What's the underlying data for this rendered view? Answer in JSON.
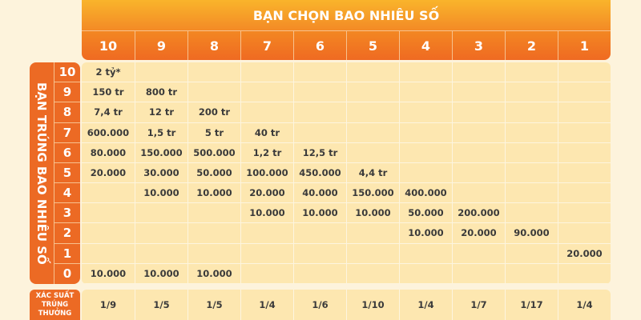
{
  "header": {
    "title": "BẠN CHỌN BAO NHIÊU SỐ",
    "columns": [
      "10",
      "9",
      "8",
      "7",
      "6",
      "5",
      "4",
      "3",
      "2",
      "1"
    ]
  },
  "side": {
    "title": "BẠN TRÚNG BAO NHIÊU SỐ",
    "rows": [
      "10",
      "9",
      "8",
      "7",
      "6",
      "5",
      "4",
      "3",
      "2",
      "1",
      "0"
    ]
  },
  "table": [
    [
      "2 tỷ*",
      "",
      "",
      "",
      "",
      "",
      "",
      "",
      "",
      ""
    ],
    [
      "150 tr",
      "800 tr",
      "",
      "",
      "",
      "",
      "",
      "",
      "",
      ""
    ],
    [
      "7,4 tr",
      "12 tr",
      "200 tr",
      "",
      "",
      "",
      "",
      "",
      "",
      ""
    ],
    [
      "600.000",
      "1,5 tr",
      "5 tr",
      "40 tr",
      "",
      "",
      "",
      "",
      "",
      ""
    ],
    [
      "80.000",
      "150.000",
      "500.000",
      "1,2 tr",
      "12,5 tr",
      "",
      "",
      "",
      "",
      ""
    ],
    [
      "20.000",
      "30.000",
      "50.000",
      "100.000",
      "450.000",
      "4,4 tr",
      "",
      "",
      "",
      ""
    ],
    [
      "",
      "10.000",
      "10.000",
      "20.000",
      "40.000",
      "150.000",
      "400.000",
      "",
      "",
      ""
    ],
    [
      "",
      "",
      "",
      "10.000",
      "10.000",
      "10.000",
      "50.000",
      "200.000",
      "",
      ""
    ],
    [
      "",
      "",
      "",
      "",
      "",
      "",
      "10.000",
      "20.000",
      "90.000",
      ""
    ],
    [
      "",
      "",
      "",
      "",
      "",
      "",
      "",
      "",
      "",
      "20.000"
    ],
    [
      "10.000",
      "10.000",
      "10.000",
      "",
      "",
      "",
      "",
      "",
      "",
      ""
    ]
  ],
  "footer": {
    "label": "XÁC SUẤT TRÚNG THƯỞNG",
    "values": [
      "1/9",
      "1/5",
      "1/5",
      "1/4",
      "1/6",
      "1/10",
      "1/4",
      "1/7",
      "1/17",
      "1/4"
    ]
  },
  "colors": {
    "orange": "#ec6a24",
    "cell": "#fde7b0",
    "background": "#fdf3dc"
  }
}
